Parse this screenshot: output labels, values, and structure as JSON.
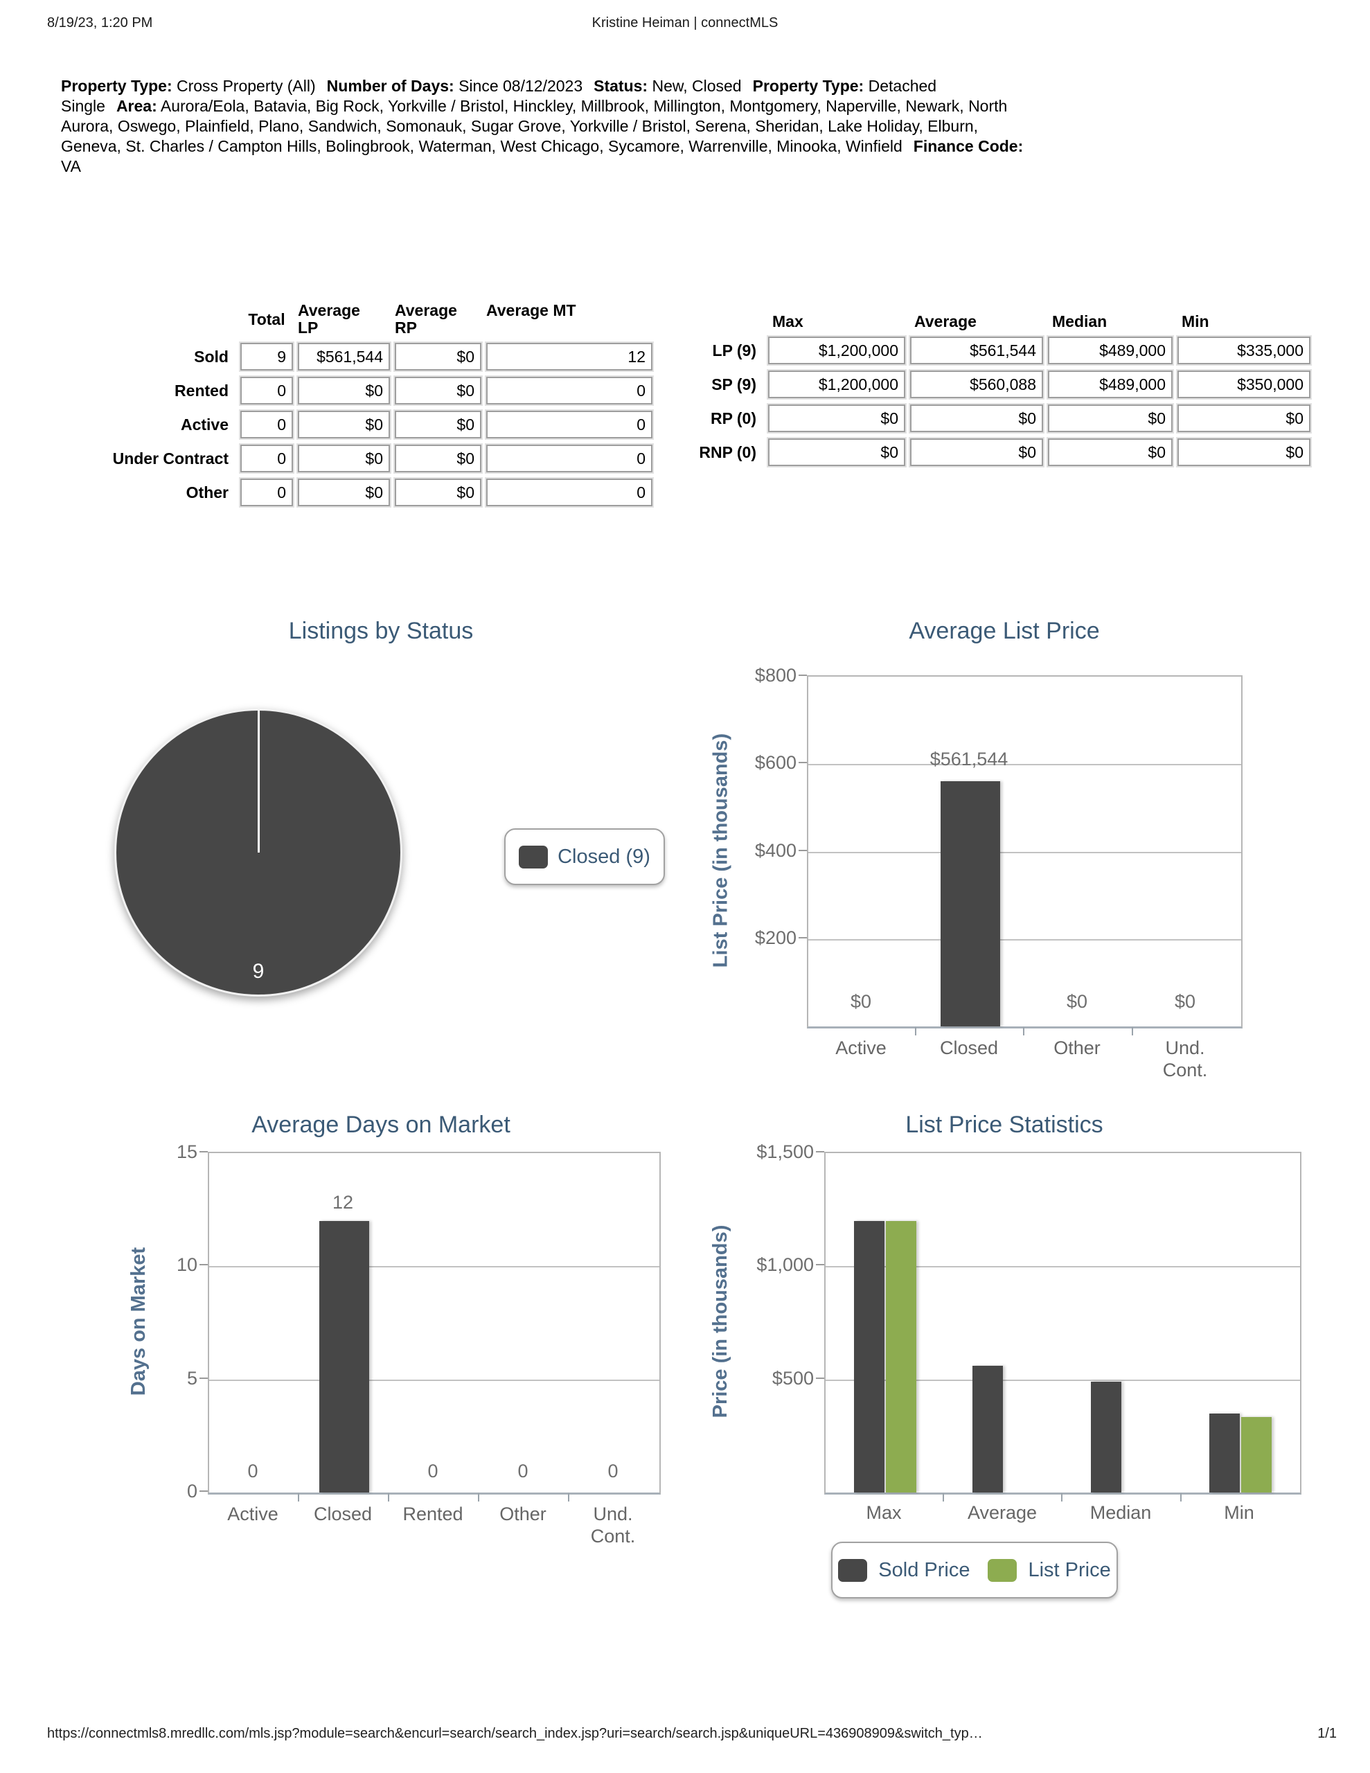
{
  "header": {
    "datetime": "8/19/23, 1:20 PM",
    "title": "Kristine Heiman | connectMLS"
  },
  "criteria": {
    "segments": [
      {
        "label": "Property Type:",
        "value": "Cross Property (All)"
      },
      {
        "label": "Number of Days:",
        "value": "Since 08/12/2023"
      },
      {
        "label": "Status:",
        "value": "New, Closed"
      },
      {
        "label": "Property Type:",
        "value": "Detached Single"
      },
      {
        "label": "Area:",
        "value": "Aurora/Eola, Batavia, Big Rock, Yorkville / Bristol, Hinckley, Millbrook, Millington, Montgomery, Naperville, Newark, North Aurora, Oswego, Plainfield, Plano, Sandwich, Somonauk, Sugar Grove, Yorkville / Bristol, Serena, Sheridan, Lake Holiday, Elburn, Geneva, St. Charles / Campton Hills, Bolingbrook, Waterman, West Chicago, Sycamore, Warrenville, Minooka, Winfield"
      },
      {
        "label": "Finance Code:",
        "value": "VA"
      }
    ]
  },
  "status_table": {
    "headers": {
      "total": "Total",
      "avg_lp": "Average\nLP",
      "avg_rp": "Average\nRP",
      "avg_mt": "Average MT"
    },
    "rows": [
      {
        "label": "Sold",
        "total": "9",
        "avg_lp": "$561,544",
        "avg_rp": "$0",
        "avg_mt": "12"
      },
      {
        "label": "Rented",
        "total": "0",
        "avg_lp": "$0",
        "avg_rp": "$0",
        "avg_mt": "0"
      },
      {
        "label": "Active",
        "total": "0",
        "avg_lp": "$0",
        "avg_rp": "$0",
        "avg_mt": "0"
      },
      {
        "label": "Under Contract",
        "total": "0",
        "avg_lp": "$0",
        "avg_rp": "$0",
        "avg_mt": "0"
      },
      {
        "label": "Other",
        "total": "0",
        "avg_lp": "$0",
        "avg_rp": "$0",
        "avg_mt": "0"
      }
    ]
  },
  "price_table": {
    "headers": {
      "max": "Max",
      "average": "Average",
      "median": "Median",
      "min": "Min"
    },
    "rows": [
      {
        "label": "LP (9)",
        "max": "$1,200,000",
        "average": "$561,544",
        "median": "$489,000",
        "min": "$335,000"
      },
      {
        "label": "SP (9)",
        "max": "$1,200,000",
        "average": "$560,088",
        "median": "$489,000",
        "min": "$350,000"
      },
      {
        "label": "RP (0)",
        "max": "$0",
        "average": "$0",
        "median": "$0",
        "min": "$0"
      },
      {
        "label": "RNP (0)",
        "max": "$0",
        "average": "$0",
        "median": "$0",
        "min": "$0"
      }
    ]
  },
  "chart_data": [
    {
      "type": "pie",
      "title": "Listings by Status",
      "slices": [
        {
          "label": "Closed",
          "value": 9,
          "color": "#474747"
        }
      ],
      "center_label": "9",
      "legend": [
        "Closed (9)"
      ],
      "legend_position": "right"
    },
    {
      "type": "bar",
      "title": "Average List Price",
      "ylabel": "List Price (in thousands)",
      "categories": [
        "Active",
        "Closed",
        "Other",
        "Und. Cont."
      ],
      "values": [
        0,
        561.544,
        0,
        0
      ],
      "value_labels": [
        "$0",
        "$561,544",
        "$0",
        "$0"
      ],
      "yticks": [
        "$800",
        "$600",
        "$400",
        "$200"
      ],
      "ylim": [
        0,
        800
      ],
      "bar_color": "#474747",
      "grid": true
    },
    {
      "type": "bar",
      "title": "Average Days on Market",
      "ylabel": "Days on Market",
      "categories": [
        "Active",
        "Closed",
        "Rented",
        "Other",
        "Und. Cont."
      ],
      "values": [
        0,
        12,
        0,
        0,
        0
      ],
      "value_labels": [
        "0",
        "12",
        "0",
        "0",
        "0"
      ],
      "yticks": [
        "15",
        "10",
        "5",
        "0"
      ],
      "ylim": [
        0,
        15
      ],
      "bar_color": "#474747",
      "grid": true
    },
    {
      "type": "bar",
      "title": "List Price Statistics",
      "ylabel": "Price (in thousands)",
      "categories": [
        "Max",
        "Average",
        "Median",
        "Min"
      ],
      "series": [
        {
          "name": "Sold Price",
          "color": "#474747",
          "values": [
            1200,
            560.088,
            489,
            350
          ]
        },
        {
          "name": "List Price",
          "color": "#8dac50",
          "values": [
            1200,
            null,
            null,
            335
          ]
        }
      ],
      "yticks": [
        "$1,500",
        "$1,000",
        "$500"
      ],
      "ylim": [
        0,
        1500
      ],
      "legend": [
        "Sold Price",
        "List Price"
      ],
      "legend_position": "bottom",
      "grid": true
    }
  ],
  "colors": {
    "title_blue": "#3b5a76",
    "axis_blue": "#53708e",
    "bar_dark": "#474747",
    "bar_green": "#8dac50"
  },
  "footer": {
    "url": "https://connectmls8.mredllc.com/mls.jsp?module=search&encurl=search/search_index.jsp?uri=search/search.jsp&uniqueURL=436908909&switch_typ…",
    "page": "1/1"
  }
}
